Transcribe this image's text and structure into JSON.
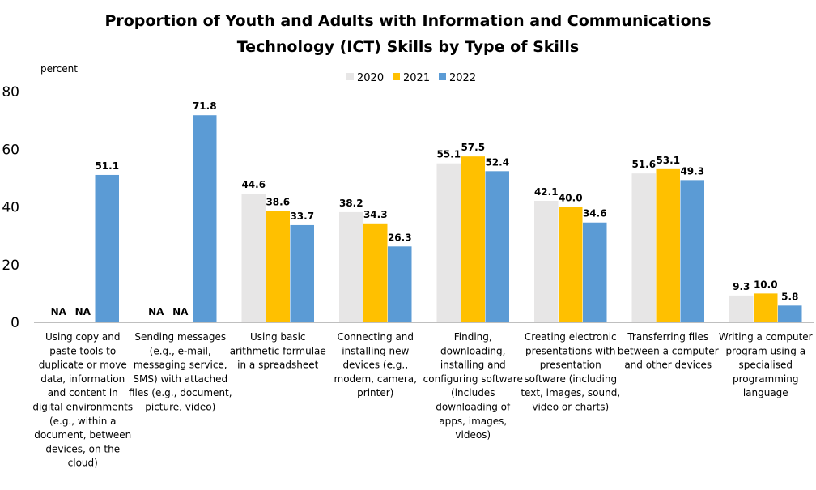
{
  "chart_data": {
    "type": "bar",
    "title": [
      "Proportion of Youth and Adults with Information and Communications",
      "Technology (ICT) Skills  by Type of Skills"
    ],
    "ylabel": "percent",
    "xlabel": "",
    "ylim": [
      0,
      80
    ],
    "yticks": [
      0,
      20,
      40,
      60,
      80
    ],
    "grid": false,
    "legend_position": "top-center",
    "na_label": "NA",
    "categories": [
      [
        "Using copy and",
        "paste tools to",
        "duplicate or move",
        "data, information",
        "and content in",
        "digital environments",
        "(e.g., within a",
        "document, between",
        "devices, on the",
        "cloud)"
      ],
      [
        "Sending messages",
        "(e.g., e-mail,",
        "messaging service,",
        "SMS) with attached",
        "files (e.g., document,",
        "picture, video)"
      ],
      [
        "Using basic",
        "arithmetic formulae",
        "in a spreadsheet"
      ],
      [
        "Connecting and",
        "installing new",
        "devices (e.g.,",
        "modem, camera,",
        "printer)"
      ],
      [
        "Finding,",
        "downloading,",
        "installing and",
        "configuring software",
        "(includes",
        "downloading of",
        "apps, images,",
        "videos)"
      ],
      [
        "Creating electronic",
        "presentations with",
        "presentation",
        "software (including",
        "text, images, sound,",
        "video or charts)"
      ],
      [
        "Transferring files",
        "between a computer",
        "and other devices"
      ],
      [
        "Writing a computer",
        "program using a",
        "specialised",
        "programming",
        "language"
      ]
    ],
    "series": [
      {
        "name": "2020",
        "color": "#e7e6e6",
        "values": [
          null,
          null,
          44.6,
          38.2,
          55.1,
          42.1,
          51.6,
          9.3
        ],
        "labels": [
          "NA",
          "NA",
          "44.6",
          "38.2",
          "55.1",
          "42.1",
          "51.6",
          "9.3"
        ]
      },
      {
        "name": "2021",
        "color": "#ffc000",
        "values": [
          null,
          null,
          38.6,
          34.3,
          57.5,
          40.0,
          53.1,
          10.0
        ],
        "labels": [
          "NA",
          "NA",
          "38.6",
          "34.3",
          "57.5",
          "40.0",
          "53.1",
          "10.0"
        ]
      },
      {
        "name": "2022",
        "color": "#5b9bd5",
        "values": [
          51.1,
          71.8,
          33.7,
          26.3,
          52.4,
          34.6,
          49.3,
          5.8
        ],
        "labels": [
          "51.1",
          "71.8",
          "33.7",
          "26.3",
          "52.4",
          "34.6",
          "49.3",
          "5.8"
        ]
      }
    ]
  }
}
